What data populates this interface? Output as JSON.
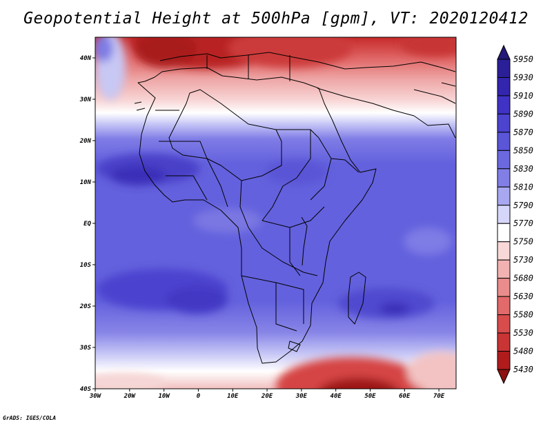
{
  "title": "Geopotential Height at 500hPa [gpm], VT: 2020120412",
  "footer": "GrADS: IGES/COLA",
  "map": {
    "projection": "latlon",
    "lon_range": [
      -30,
      75
    ],
    "lat_range": [
      -40,
      45
    ],
    "x_ticks": [
      {
        "value": -30,
        "label": "30W"
      },
      {
        "value": -20,
        "label": "20W"
      },
      {
        "value": -10,
        "label": "10W"
      },
      {
        "value": 0,
        "label": "0"
      },
      {
        "value": 10,
        "label": "10E"
      },
      {
        "value": 20,
        "label": "20E"
      },
      {
        "value": 30,
        "label": "30E"
      },
      {
        "value": 40,
        "label": "40E"
      },
      {
        "value": 50,
        "label": "50E"
      },
      {
        "value": 60,
        "label": "60E"
      },
      {
        "value": 70,
        "label": "70E"
      }
    ],
    "y_ticks": [
      {
        "value": 40,
        "label": "40N"
      },
      {
        "value": 30,
        "label": "30N"
      },
      {
        "value": 20,
        "label": "20N"
      },
      {
        "value": 10,
        "label": "10N"
      },
      {
        "value": 0,
        "label": "EQ"
      },
      {
        "value": -10,
        "label": "10S"
      },
      {
        "value": -20,
        "label": "20S"
      },
      {
        "value": -30,
        "label": "30S"
      },
      {
        "value": -40,
        "label": "40S"
      }
    ]
  },
  "colorbar": {
    "levels": [
      {
        "label": "5950",
        "color": "#241878"
      },
      {
        "label": "5930",
        "color": "#2b1f98"
      },
      {
        "label": "5910",
        "color": "#3325ae"
      },
      {
        "label": "5890",
        "color": "#3f32c4"
      },
      {
        "label": "5870",
        "color": "#4c43cf"
      },
      {
        "label": "5850",
        "color": "#5b55d8"
      },
      {
        "label": "5830",
        "color": "#6c69e0"
      },
      {
        "label": "5810",
        "color": "#817fe6"
      },
      {
        "label": "5790",
        "color": "#a8a8f0"
      },
      {
        "label": "5770",
        "color": "#d6d6fa"
      },
      {
        "label": "5750",
        "color": "#ffffff"
      },
      {
        "label": "5730",
        "color": "#f9d8d8"
      },
      {
        "label": "5680",
        "color": "#f2b2b2"
      },
      {
        "label": "5630",
        "color": "#ea8c8c"
      },
      {
        "label": "5580",
        "color": "#e26a6a"
      },
      {
        "label": "5530",
        "color": "#d84c4c"
      },
      {
        "label": "5480",
        "color": "#c93434"
      },
      {
        "label": "5430",
        "color": "#b01c1c"
      },
      {
        "label": "",
        "color": "#8e1010"
      }
    ]
  }
}
